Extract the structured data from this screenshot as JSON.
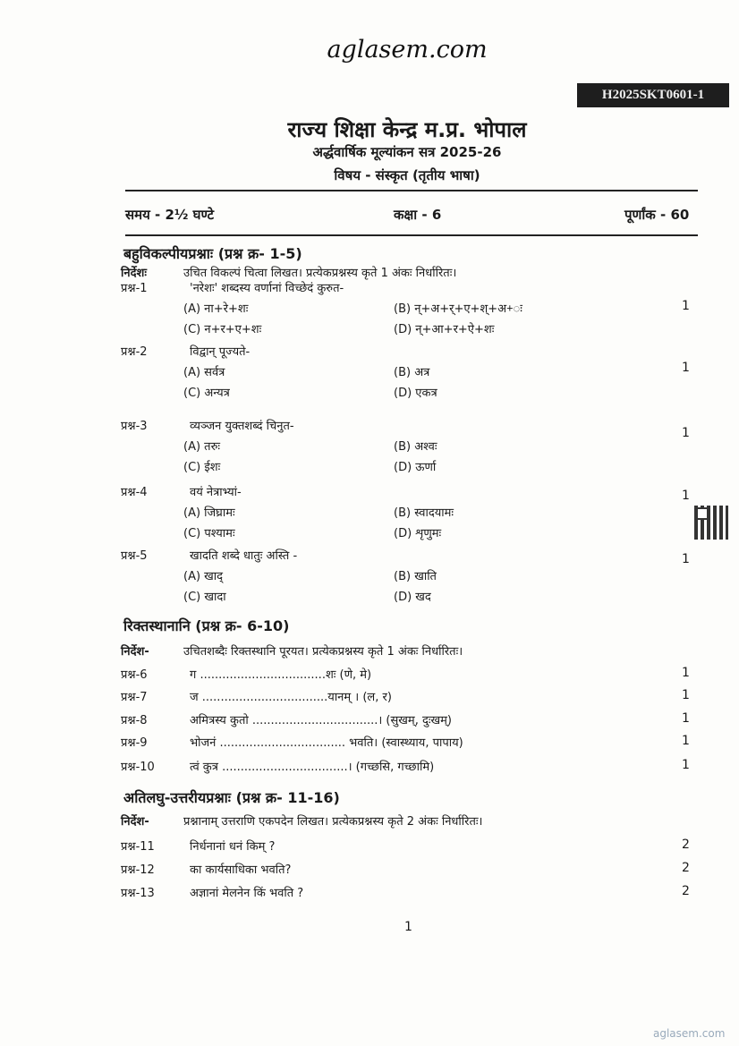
{
  "watermark_top": "aglasem.com",
  "paper_code": "H2025SKT0601-1",
  "header": {
    "title": "राज्य शिक्षा केन्द्र म.प्र. भोपाल",
    "subtitle": "अर्द्धवार्षिक मूल्यांकन सत्र 2025-26",
    "subject": "विषय - संस्कृत (तृतीय भाषा)",
    "time": "समय - 2½ घण्टे",
    "class": "कक्षा - 6",
    "max_marks": "पूर्णांक - 60"
  },
  "sections": [
    {
      "heading": "बहुविकल्पीयप्रश्नाः (प्रश्न क्र- 1-5)",
      "instruction_label": "निर्देशः",
      "instruction": "उचित विकल्पं चित्वा लिखत। प्रत्येकप्रश्नस्य कृते 1 अंकः निर्धारितः।",
      "questions": [
        {
          "label": "प्रश्न-1",
          "text": "'नरेशः' शब्दस्य वर्णानां विच्छेदं कुरुत-",
          "marks": "1",
          "options": [
            "(A)  ना+रे+शः",
            "(B)  न्+अ+र्+ए+श्+अ+ः",
            "(C)  न+र+ए+शः",
            "(D)  न्+आ+र+ऐ+शः"
          ]
        },
        {
          "label": "प्रश्न-2",
          "text": "विद्वान् पूज्यते-",
          "marks": "1",
          "options": [
            "(A)  सर्वत्र",
            "(B)  अत्र",
            "(C)  अन्यत्र",
            "(D)  एकत्र"
          ]
        },
        {
          "label": "प्रश्न-3",
          "text": "व्यञ्जन युक्तशब्दं चिनुत-",
          "marks": "1",
          "options": [
            "(A)  तरुः",
            "(B)  अश्वः",
            "(C)  ईशः",
            "(D)  ऊर्णा"
          ]
        },
        {
          "label": "प्रश्न-4",
          "text": "वयं नेत्राभ्यां-",
          "marks": "1",
          "options": [
            "(A)  जिघ्रामः",
            "(B)  स्वादयामः",
            "(C)  पश्यामः",
            "(D)  शृणुमः"
          ]
        },
        {
          "label": "प्रश्न-5",
          "text": "खादति शब्दे धातुः अस्ति -",
          "marks": "1",
          "options": [
            "(A)  खाद्",
            "(B)  खाति",
            "(C)  खादा",
            "(D)  खद"
          ]
        }
      ]
    },
    {
      "heading": "रिक्तस्थानानि (प्रश्न क्र- 6-10)",
      "instruction_label": "निर्देश-",
      "instruction": "उचितशब्दैः रिक्तस्थानि पूरयत। प्रत्येकप्रश्नस्य कृते 1 अंकः निर्धारितः।",
      "questions": [
        {
          "label": "प्रश्न-6",
          "text": "ग ..................................शः (णे, मे)",
          "marks": "1"
        },
        {
          "label": "प्रश्न-7",
          "text": "ज ..................................यानम् । (ल, र)",
          "marks": "1"
        },
        {
          "label": "प्रश्न-8",
          "text": "अमित्रस्य कुतो ..................................। (सुखम्, दुःखम्)",
          "marks": "1"
        },
        {
          "label": "प्रश्न-9",
          "text": "भोजनं .................................. भवति। (स्वास्थ्याय, पापाय)",
          "marks": "1"
        },
        {
          "label": "प्रश्न-10",
          "text": "त्वं कुत्र ..................................। (गच्छसि, गच्छामि)",
          "marks": "1"
        }
      ]
    },
    {
      "heading": "अतिलघु-उत्तरीयप्रश्नाः (प्रश्न क्र- 11-16)",
      "instruction_label": "निर्देश-",
      "instruction": "प्रश्नानाम् उत्तराणि एकपदेन लिखत। प्रत्येकप्रश्नस्य कृते 2 अंकः निर्धारितः।",
      "questions": [
        {
          "label": "प्रश्न-11",
          "text": "निर्धनानां धनं किम् ?",
          "marks": "2"
        },
        {
          "label": "प्रश्न-12",
          "text": "का कार्यसाधिका भवति?",
          "marks": "2"
        },
        {
          "label": "प्रश्न-13",
          "text": "अज्ञानां मेलनेन किं भवति ?",
          "marks": "2"
        }
      ]
    }
  ],
  "page_number": "1",
  "watermark_bottom": "aglasem.com"
}
